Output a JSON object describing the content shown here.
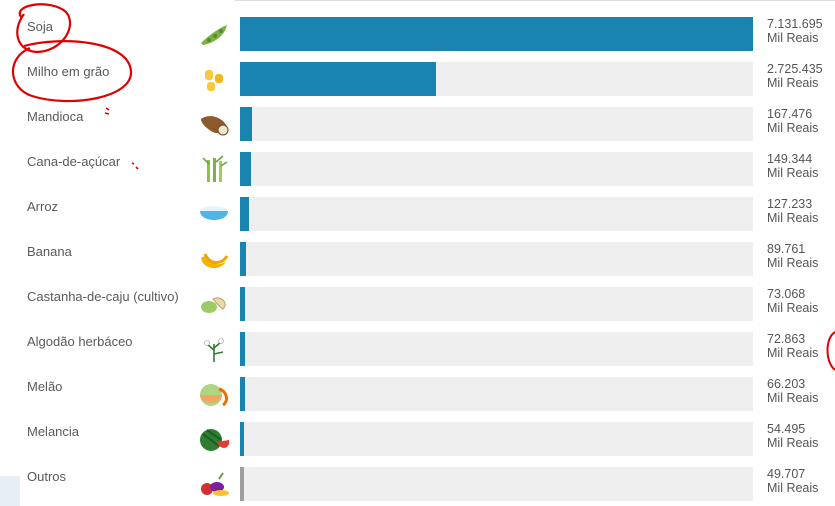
{
  "chart_data": {
    "type": "bar",
    "orientation": "horizontal",
    "unit": "Mil Reais",
    "categories": [
      "Soja",
      "Milho em grão",
      "Mandioca",
      "Cana-de-açúcar",
      "Arroz",
      "Banana",
      "Castanha-de-caju (cultivo)",
      "Algodão herbáceo",
      "Melão",
      "Melancia",
      "Outros"
    ],
    "values": [
      7131695,
      2725435,
      167476,
      149344,
      127233,
      89761,
      73068,
      72863,
      66203,
      54495,
      49707
    ],
    "value_labels": [
      "7.131.695",
      "2.725.435",
      "167.476",
      "149.344",
      "127.233",
      "89.761",
      "73.068",
      "72.863",
      "66.203",
      "54.495",
      "49.707"
    ],
    "xlim": [
      0,
      7131695
    ],
    "grid": false,
    "legend": "none"
  },
  "icons": [
    "soybean-icon",
    "corn-icon",
    "cassava-icon",
    "sugarcane-icon",
    "rice-bowl-icon",
    "banana-icon",
    "cashew-icon",
    "cotton-icon",
    "melon-icon",
    "watermelon-icon",
    "mixed-produce-icon"
  ],
  "colors": {
    "bar": "#1a84b0",
    "bar_other": "#9e9e9e",
    "track": "#efefef",
    "annotation": "#e00000"
  }
}
